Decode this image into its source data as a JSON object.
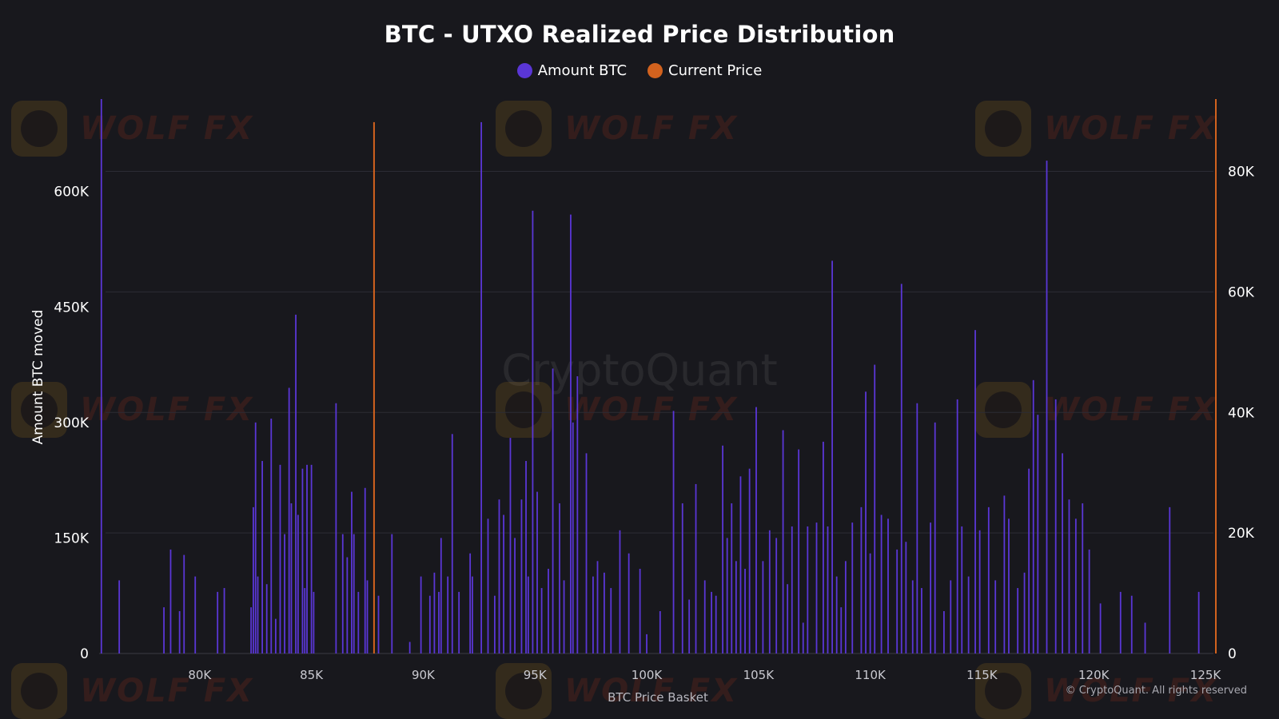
{
  "title": "BTC - UTXO Realized Price Distribution",
  "legend": {
    "amount_label": "Amount BTC",
    "current_label": "Current Price"
  },
  "colors": {
    "background": "#18181d",
    "amount": "#5a36d6",
    "current": "#d2621e",
    "grid": "#2c2c34"
  },
  "copyright": "© CryptoQuant. All rights reserved",
  "watermark": {
    "brand": "WOLF FX",
    "center": "CryptoQuant"
  },
  "chart_data": {
    "type": "bar",
    "xlabel": "BTC Price Basket",
    "ylabel": "Amount BTC moved",
    "xlim": [
      75500,
      125500
    ],
    "ylim": [
      0,
      720000
    ],
    "y2lim": [
      0,
      92000
    ],
    "xticks": [
      "80K",
      "85K",
      "90K",
      "95K",
      "100K",
      "105K",
      "110K",
      "115K",
      "120K",
      "125K"
    ],
    "xtick_values": [
      80000,
      85000,
      90000,
      95000,
      100000,
      105000,
      110000,
      115000,
      120000,
      125000
    ],
    "yticks_left": [
      "0",
      "150K",
      "300K",
      "450K",
      "600K"
    ],
    "ytick_left_values": [
      0,
      150000,
      300000,
      450000,
      600000
    ],
    "yticks_right": [
      "0",
      "20K",
      "40K",
      "60K",
      "80K"
    ],
    "ytick_right_values": [
      0,
      20000,
      40000,
      60000,
      80000
    ],
    "current_price_line": {
      "x": 87800,
      "value": 87800
    },
    "series": [
      {
        "name": "Amount BTC",
        "axis": "left",
        "points": [
          [
            75600,
            720000
          ],
          [
            76400,
            95000
          ],
          [
            78400,
            60000
          ],
          [
            78700,
            135000
          ],
          [
            79100,
            55000
          ],
          [
            79300,
            128000
          ],
          [
            79800,
            100000
          ],
          [
            80800,
            80000
          ],
          [
            81100,
            85000
          ],
          [
            82300,
            60000
          ],
          [
            82400,
            190000
          ],
          [
            82500,
            300000
          ],
          [
            82600,
            100000
          ],
          [
            82800,
            250000
          ],
          [
            83000,
            90000
          ],
          [
            83200,
            305000
          ],
          [
            83400,
            45000
          ],
          [
            83600,
            245000
          ],
          [
            83800,
            155000
          ],
          [
            84000,
            345000
          ],
          [
            84100,
            195000
          ],
          [
            84300,
            440000
          ],
          [
            84400,
            180000
          ],
          [
            84600,
            240000
          ],
          [
            84700,
            85000
          ],
          [
            84800,
            245000
          ],
          [
            85000,
            245000
          ],
          [
            85100,
            80000
          ],
          [
            86100,
            325000
          ],
          [
            86400,
            155000
          ],
          [
            86600,
            125000
          ],
          [
            86800,
            210000
          ],
          [
            86900,
            155000
          ],
          [
            87100,
            80000
          ],
          [
            87400,
            215000
          ],
          [
            87500,
            95000
          ],
          [
            88000,
            75000
          ],
          [
            88600,
            155000
          ],
          [
            89400,
            15000
          ],
          [
            89900,
            100000
          ],
          [
            90300,
            75000
          ],
          [
            90500,
            105000
          ],
          [
            90700,
            80000
          ],
          [
            90800,
            150000
          ],
          [
            91100,
            100000
          ],
          [
            91300,
            285000
          ],
          [
            91600,
            80000
          ],
          [
            92100,
            130000
          ],
          [
            92200,
            100000
          ],
          [
            92600,
            690000
          ],
          [
            92900,
            175000
          ],
          [
            93200,
            75000
          ],
          [
            93400,
            200000
          ],
          [
            93600,
            180000
          ],
          [
            93900,
            280000
          ],
          [
            94100,
            150000
          ],
          [
            94400,
            200000
          ],
          [
            94600,
            250000
          ],
          [
            94700,
            100000
          ],
          [
            94900,
            575000
          ],
          [
            95100,
            210000
          ],
          [
            95300,
            85000
          ],
          [
            95600,
            110000
          ],
          [
            95800,
            370000
          ],
          [
            96100,
            195000
          ],
          [
            96300,
            95000
          ],
          [
            96600,
            570000
          ],
          [
            96700,
            300000
          ],
          [
            96900,
            360000
          ],
          [
            97300,
            260000
          ],
          [
            97600,
            100000
          ],
          [
            97800,
            120000
          ],
          [
            98100,
            105000
          ],
          [
            98400,
            85000
          ],
          [
            98800,
            160000
          ],
          [
            99200,
            130000
          ],
          [
            99700,
            110000
          ],
          [
            100000,
            25000
          ],
          [
            100600,
            55000
          ],
          [
            101200,
            315000
          ],
          [
            101600,
            195000
          ],
          [
            101900,
            70000
          ],
          [
            102200,
            220000
          ],
          [
            102600,
            95000
          ],
          [
            102900,
            80000
          ],
          [
            103100,
            75000
          ],
          [
            103400,
            270000
          ],
          [
            103600,
            150000
          ],
          [
            103800,
            195000
          ],
          [
            104000,
            120000
          ],
          [
            104200,
            230000
          ],
          [
            104400,
            110000
          ],
          [
            104600,
            240000
          ],
          [
            104900,
            320000
          ],
          [
            105200,
            120000
          ],
          [
            105500,
            160000
          ],
          [
            105800,
            150000
          ],
          [
            106100,
            290000
          ],
          [
            106300,
            90000
          ],
          [
            106500,
            165000
          ],
          [
            106800,
            265000
          ],
          [
            107000,
            40000
          ],
          [
            107200,
            165000
          ],
          [
            107600,
            170000
          ],
          [
            107900,
            275000
          ],
          [
            108100,
            165000
          ],
          [
            108300,
            510000
          ],
          [
            108500,
            100000
          ],
          [
            108700,
            60000
          ],
          [
            108900,
            120000
          ],
          [
            109200,
            170000
          ],
          [
            109600,
            190000
          ],
          [
            109800,
            340000
          ],
          [
            110000,
            130000
          ],
          [
            110200,
            375000
          ],
          [
            110500,
            180000
          ],
          [
            110800,
            175000
          ],
          [
            111200,
            135000
          ],
          [
            111400,
            480000
          ],
          [
            111600,
            145000
          ],
          [
            111900,
            95000
          ],
          [
            112100,
            325000
          ],
          [
            112300,
            85000
          ],
          [
            112700,
            170000
          ],
          [
            112900,
            300000
          ],
          [
            113300,
            55000
          ],
          [
            113600,
            95000
          ],
          [
            113900,
            330000
          ],
          [
            114100,
            165000
          ],
          [
            114400,
            100000
          ],
          [
            114700,
            420000
          ],
          [
            114900,
            160000
          ],
          [
            115300,
            190000
          ],
          [
            115600,
            95000
          ],
          [
            116000,
            205000
          ],
          [
            116200,
            175000
          ],
          [
            116600,
            85000
          ],
          [
            116900,
            105000
          ],
          [
            117100,
            240000
          ],
          [
            117300,
            355000
          ],
          [
            117500,
            310000
          ],
          [
            117900,
            640000
          ],
          [
            118300,
            330000
          ],
          [
            118600,
            260000
          ],
          [
            118900,
            200000
          ],
          [
            119200,
            175000
          ],
          [
            119500,
            195000
          ],
          [
            119800,
            135000
          ],
          [
            120300,
            65000
          ],
          [
            121200,
            80000
          ],
          [
            121700,
            75000
          ],
          [
            122300,
            40000
          ],
          [
            123400,
            190000
          ],
          [
            124700,
            80000
          ]
        ]
      }
    ]
  }
}
